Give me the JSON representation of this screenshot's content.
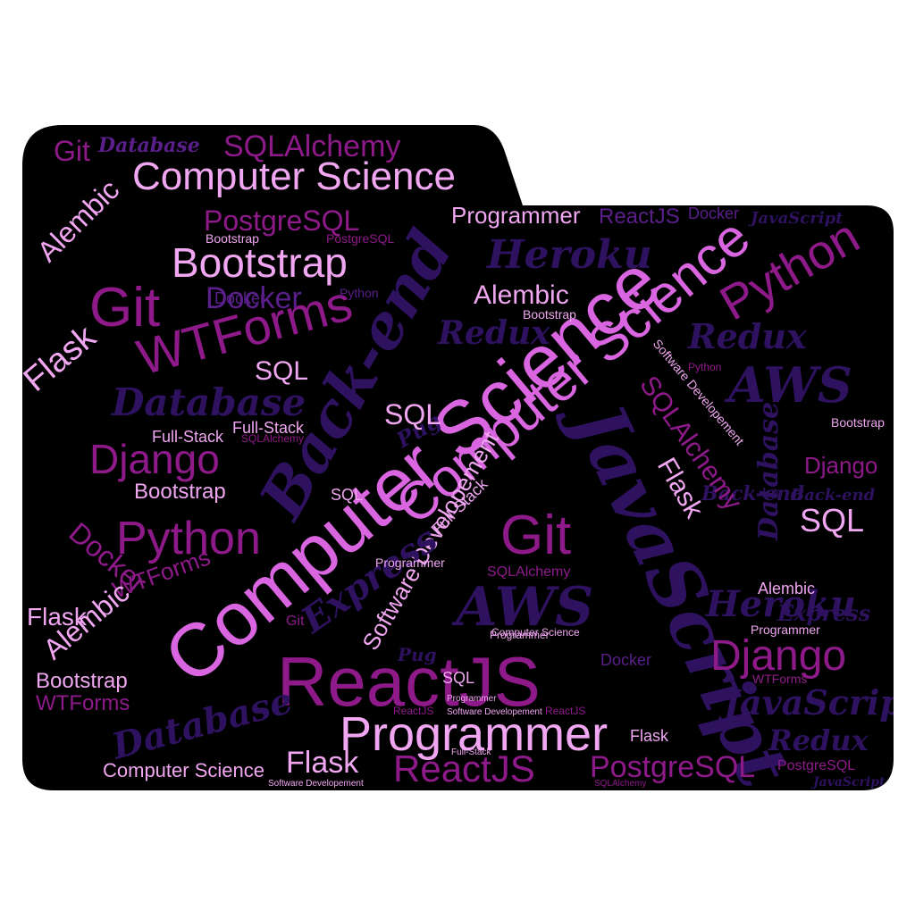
{
  "image_title": "",
  "palette": {
    "background": "#000000",
    "page": "#ffffff",
    "pink": "#d966e0",
    "light_pink": "#f0a6f0",
    "magenta": "#8e1a8a",
    "purple": "#5a1f8a",
    "dark_purple": "#2e1260",
    "violet": "#7a2aa0"
  },
  "shape": "folder-icon",
  "words": [
    "Computer Science",
    "Back-end",
    "JavaScript",
    "ReactJS",
    "Programmer",
    "Software Developement",
    "Bootstrap",
    "Git",
    "AWS",
    "Python",
    "Heroku",
    "Django",
    "Database",
    "Flask",
    "WTForms",
    "SQLAlchemy",
    "PostgreSQL",
    "Docker",
    "Alembic",
    "Express",
    "Redux",
    "Pug",
    "SQL",
    "Full-Stack"
  ]
}
